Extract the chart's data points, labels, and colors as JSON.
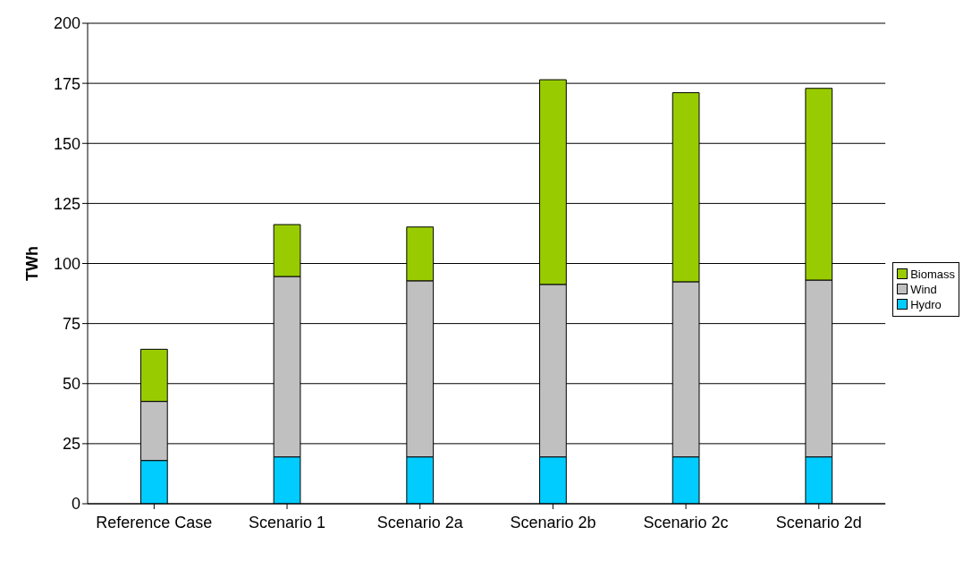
{
  "chart_data": {
    "type": "bar",
    "ylabel": "TWh",
    "stacked": true,
    "categories": [
      "Reference Case",
      "Scenario 1",
      "Scenario 2a",
      "Scenario 2b",
      "Scenario 2c",
      "Scenario 2d"
    ],
    "series": [
      {
        "name": "Hydro",
        "color": "#00ccff",
        "values": [
          18,
          19.5,
          19.5,
          19.5,
          19.5,
          19.5
        ]
      },
      {
        "name": "Wind",
        "color": "#c0c0c0",
        "values": [
          24.6,
          75.1,
          73.3,
          71.8,
          72.9,
          73.6
        ]
      },
      {
        "name": "Biomass",
        "color": "#99cc00",
        "values": [
          21.7,
          21.6,
          22.4,
          85.2,
          78.7,
          79.8
        ]
      }
    ],
    "ylim": [
      0,
      200
    ],
    "yticks": [
      0,
      25,
      50,
      75,
      100,
      125,
      150,
      175,
      200
    ],
    "grid": "y",
    "legend": "right"
  }
}
